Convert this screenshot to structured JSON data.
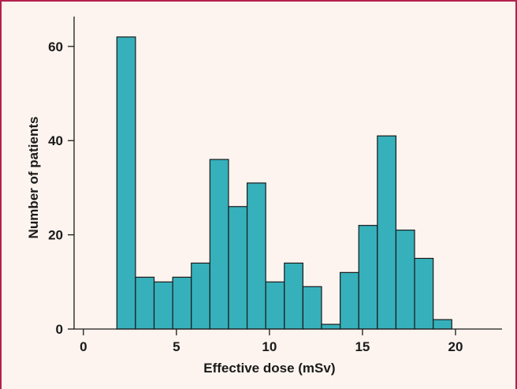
{
  "colors": {
    "background": "#fdf4ef",
    "border": "#b3214e",
    "bar_fill": "#36b0bb",
    "bar_stroke": "#1a1a1a",
    "axis": "#1a1a1a"
  },
  "chart_data": {
    "type": "bar",
    "subtype": "histogram",
    "title": "",
    "xlabel": "Effective dose (mSv)",
    "ylabel": "Number of patients",
    "xlim": [
      -0.5,
      22.5
    ],
    "ylim": [
      0,
      67
    ],
    "xticks": [
      0,
      5,
      10,
      15,
      20
    ],
    "yticks": [
      0,
      20,
      40,
      60
    ],
    "bins": [
      {
        "x0": 1.8,
        "x1": 2.8,
        "value": 62
      },
      {
        "x0": 2.8,
        "x1": 3.8,
        "value": 11
      },
      {
        "x0": 3.8,
        "x1": 4.8,
        "value": 10
      },
      {
        "x0": 4.8,
        "x1": 5.8,
        "value": 11
      },
      {
        "x0": 5.8,
        "x1": 6.8,
        "value": 14
      },
      {
        "x0": 6.8,
        "x1": 7.8,
        "value": 36
      },
      {
        "x0": 7.8,
        "x1": 8.8,
        "value": 26
      },
      {
        "x0": 8.8,
        "x1": 9.8,
        "value": 31
      },
      {
        "x0": 9.8,
        "x1": 10.8,
        "value": 10
      },
      {
        "x0": 10.8,
        "x1": 11.8,
        "value": 14
      },
      {
        "x0": 11.8,
        "x1": 12.8,
        "value": 9
      },
      {
        "x0": 12.8,
        "x1": 13.8,
        "value": 1
      },
      {
        "x0": 13.8,
        "x1": 14.8,
        "value": 12
      },
      {
        "x0": 14.8,
        "x1": 15.8,
        "value": 22
      },
      {
        "x0": 15.8,
        "x1": 16.8,
        "value": 41
      },
      {
        "x0": 16.8,
        "x1": 17.8,
        "value": 21
      },
      {
        "x0": 17.8,
        "x1": 18.8,
        "value": 15
      },
      {
        "x0": 18.8,
        "x1": 19.8,
        "value": 2
      }
    ],
    "grid": false,
    "legend": "none"
  }
}
